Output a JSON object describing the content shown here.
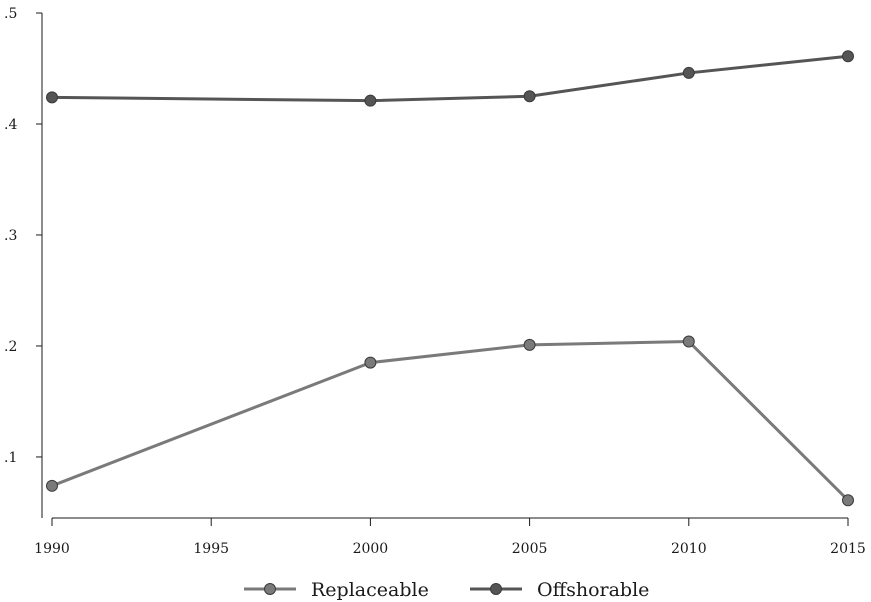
{
  "chart_data": {
    "type": "line",
    "title": "",
    "xlabel": "",
    "ylabel": "",
    "x": [
      1990,
      2000,
      2005,
      2010,
      2015
    ],
    "xticks": [
      "1990",
      "1995",
      "2000",
      "2005",
      "2010",
      "2015"
    ],
    "xtick_values": [
      1990,
      1995,
      2000,
      2005,
      2010,
      2015
    ],
    "yticks": [
      ".1",
      ".2",
      ".3",
      ".4",
      ".5"
    ],
    "ytick_values": [
      0.1,
      0.2,
      0.3,
      0.4,
      0.5
    ],
    "xlim": [
      1990,
      2015
    ],
    "ylim": [
      0.045,
      0.5
    ],
    "grid": false,
    "legend_position": "bottom",
    "series": [
      {
        "name": "Replaceable",
        "values": [
          0.074,
          0.185,
          0.201,
          0.204,
          0.061
        ],
        "color": "#7a7a7a"
      },
      {
        "name": "Offshorable",
        "values": [
          0.424,
          0.421,
          0.425,
          0.446,
          0.461
        ],
        "color": "#555555"
      }
    ]
  }
}
